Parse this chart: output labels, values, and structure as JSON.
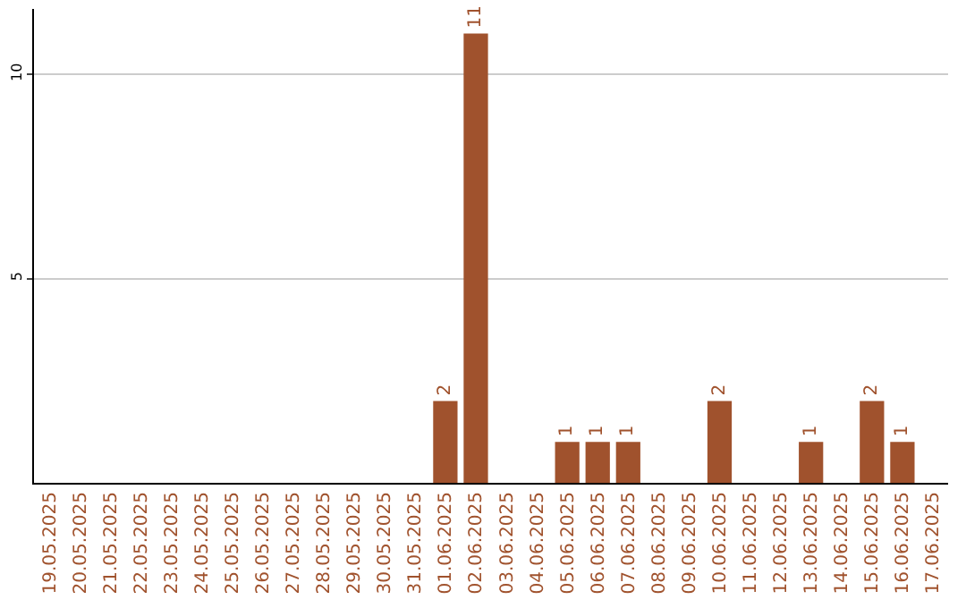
{
  "chart_data": {
    "type": "bar",
    "categories": [
      "19.05.2025",
      "20.05.2025",
      "21.05.2025",
      "22.05.2025",
      "23.05.2025",
      "24.05.2025",
      "25.05.2025",
      "26.05.2025",
      "27.05.2025",
      "28.05.2025",
      "29.05.2025",
      "30.05.2025",
      "31.05.2025",
      "01.06.2025",
      "02.06.2025",
      "03.06.2025",
      "04.06.2025",
      "05.06.2025",
      "06.06.2025",
      "07.06.2025",
      "08.06.2025",
      "09.06.2025",
      "10.06.2025",
      "11.06.2025",
      "12.06.2025",
      "13.06.2025",
      "14.06.2025",
      "15.06.2025",
      "16.06.2025",
      "17.06.2025"
    ],
    "values": [
      0,
      0,
      0,
      0,
      0,
      0,
      0,
      0,
      0,
      0,
      0,
      0,
      0,
      2,
      11,
      0,
      0,
      1,
      1,
      1,
      0,
      0,
      2,
      0,
      0,
      1,
      0,
      2,
      1,
      0
    ],
    "value_labels": [
      null,
      null,
      null,
      null,
      null,
      null,
      null,
      null,
      null,
      null,
      null,
      null,
      null,
      "2",
      "11",
      null,
      null,
      "1",
      "1",
      "1",
      null,
      null,
      "2",
      null,
      null,
      "1",
      null,
      "2",
      "1",
      null
    ],
    "color": "#a0522d",
    "ylim": [
      0,
      11.6
    ],
    "yticks": [
      5,
      10
    ],
    "grid": "y",
    "legend": false
  }
}
